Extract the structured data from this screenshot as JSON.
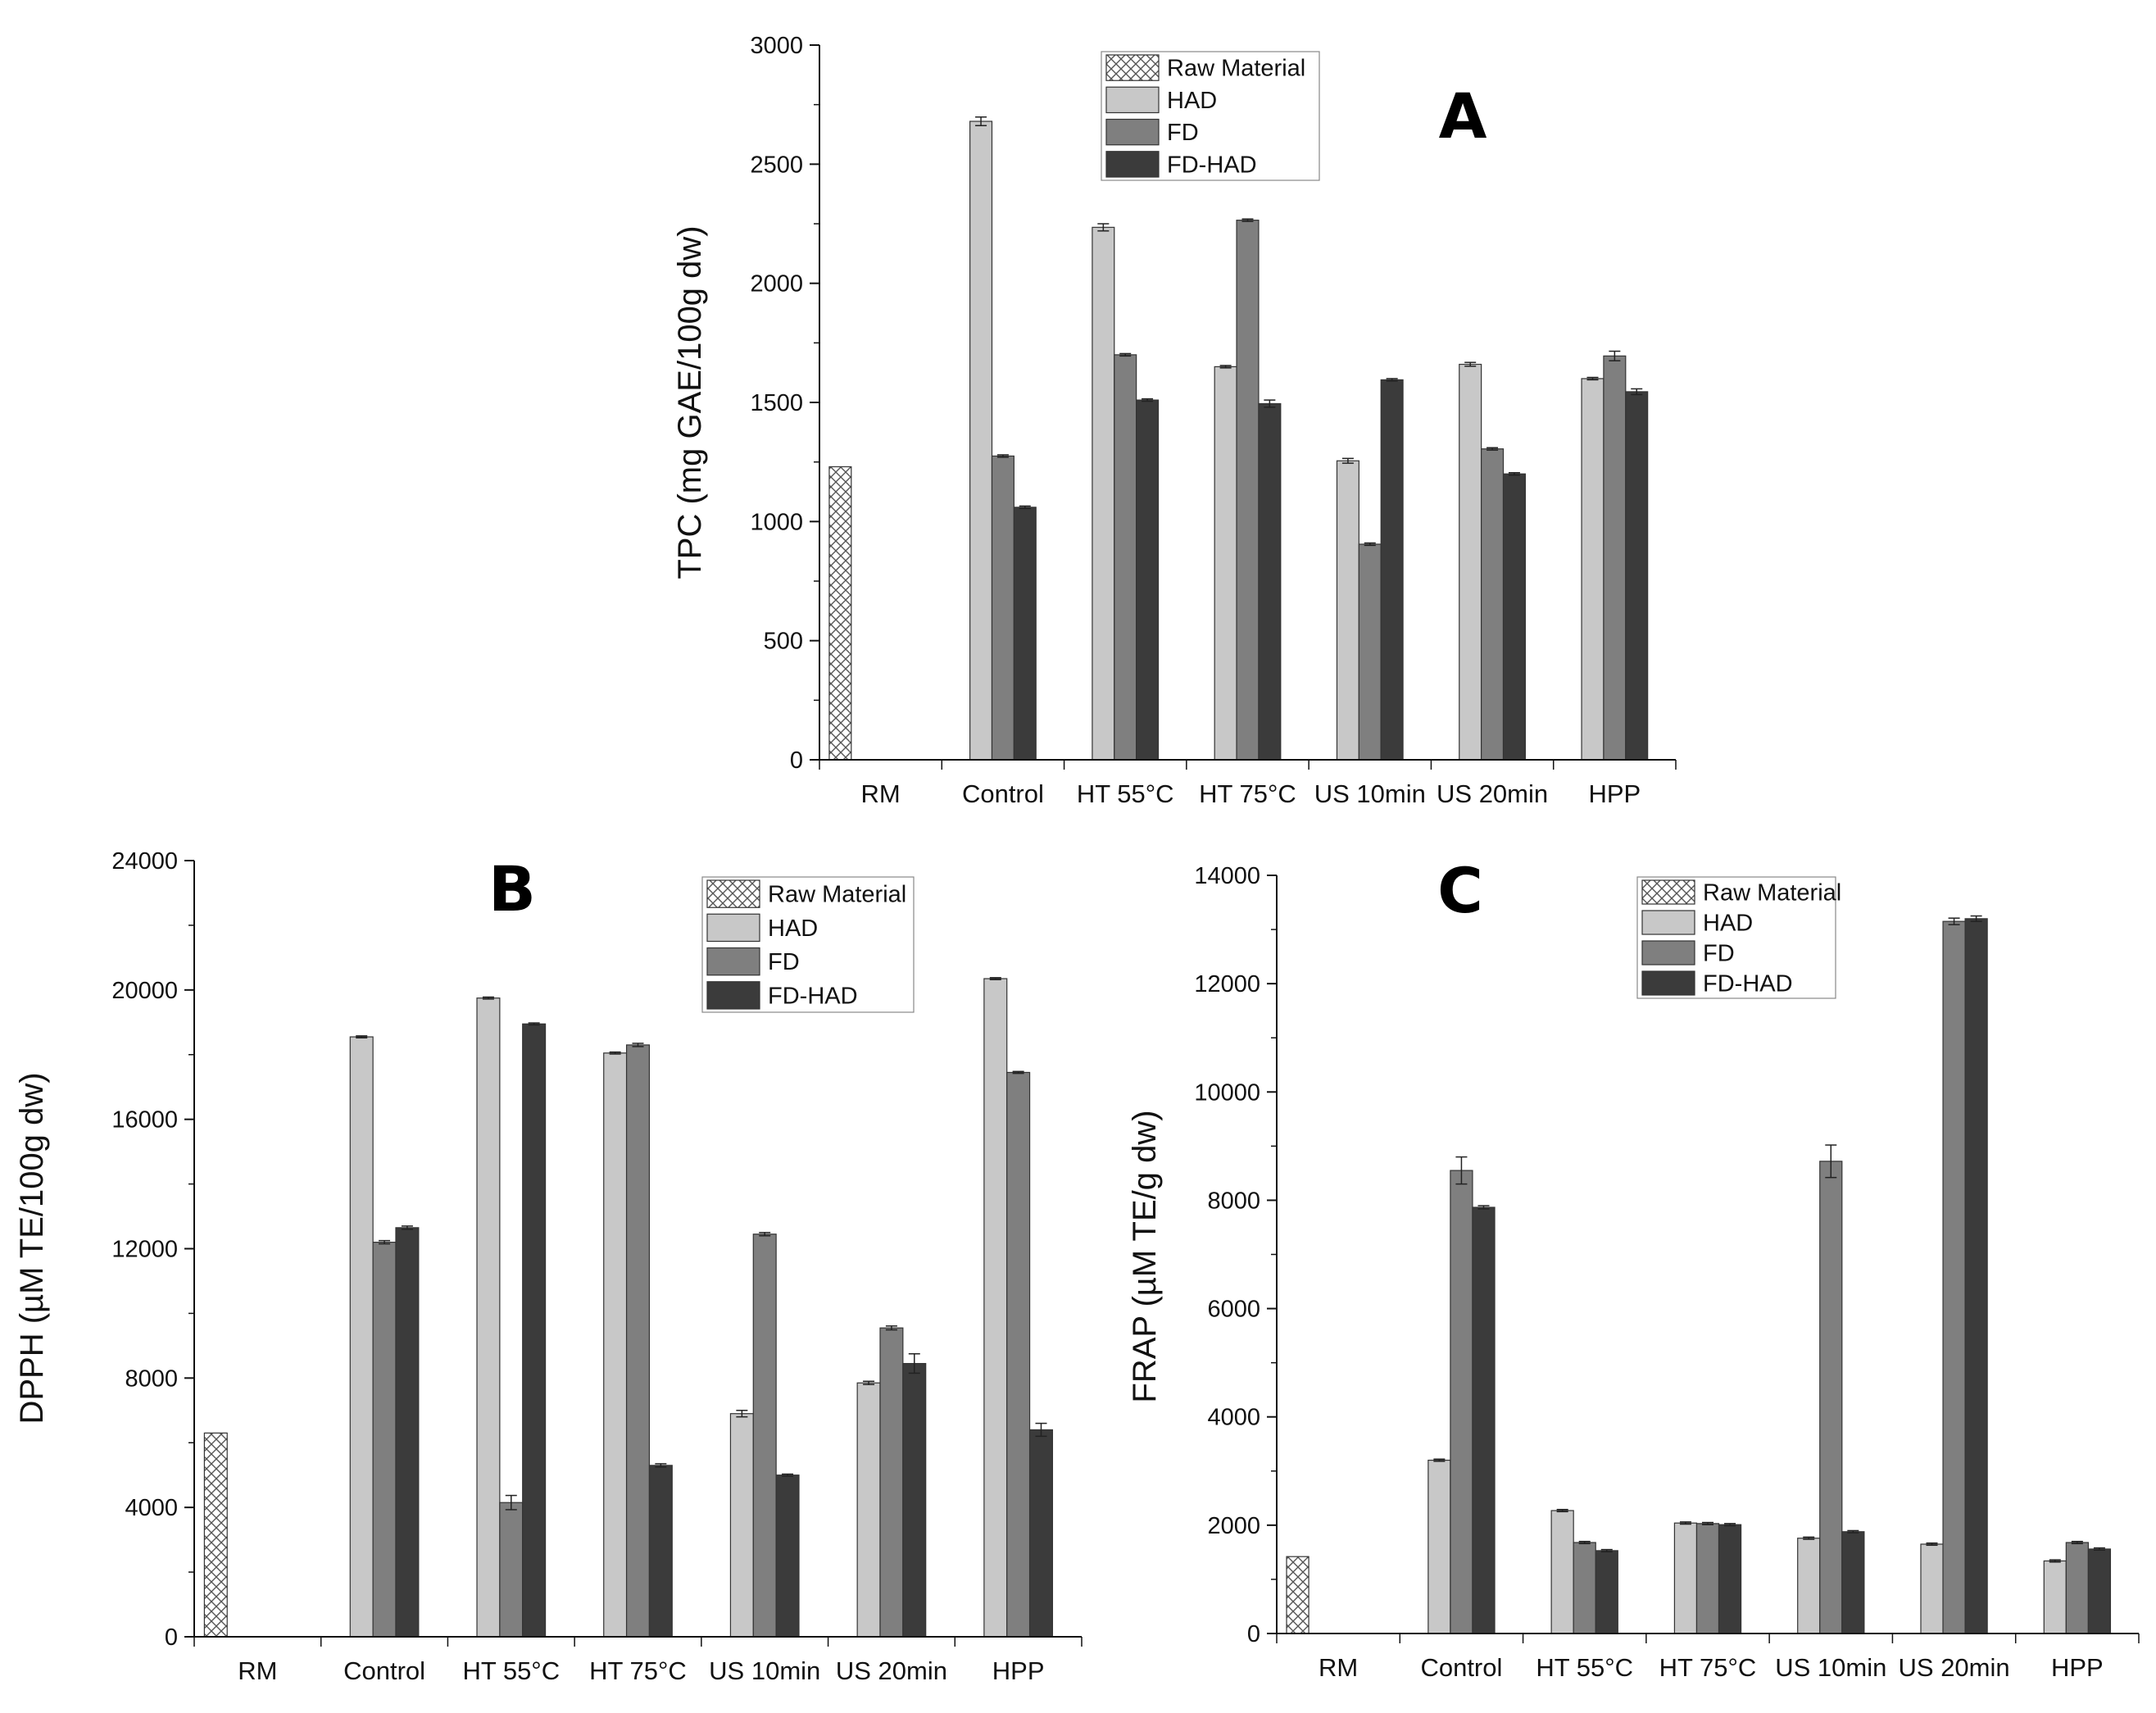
{
  "chart_data": [
    {
      "panel": "A",
      "type": "bar",
      "ylabel": "TPC (mg GAE/100g dw)",
      "ylim": [
        0,
        3000
      ],
      "yticks": [
        0,
        500,
        1000,
        1500,
        2000,
        2500,
        3000
      ],
      "legend_placement": "top-right",
      "categories": [
        "RM",
        "Control",
        "HT 55°C",
        "HT 75°C",
        "US 10min",
        "US 20min",
        "HPP"
      ],
      "series": [
        {
          "name": "Raw Material",
          "values": [
            1230,
            null,
            null,
            null,
            null,
            null,
            null
          ],
          "errors": [
            0,
            0,
            0,
            0,
            0,
            0,
            0
          ]
        },
        {
          "name": "HAD",
          "values": [
            null,
            2680,
            2235,
            1650,
            1255,
            1660,
            1600
          ],
          "errors": [
            0,
            18,
            15,
            5,
            10,
            8,
            5
          ]
        },
        {
          "name": "FD",
          "values": [
            null,
            1275,
            1700,
            2265,
            905,
            1305,
            1695
          ],
          "errors": [
            0,
            5,
            5,
            5,
            5,
            5,
            20
          ]
        },
        {
          "name": "FD-HAD",
          "values": [
            null,
            1060,
            1510,
            1495,
            1595,
            1200,
            1545
          ],
          "errors": [
            0,
            5,
            5,
            15,
            5,
            5,
            12
          ]
        }
      ]
    },
    {
      "panel": "B",
      "type": "bar",
      "ylabel": "DPPH (µM TE/100g dw)",
      "ylim": [
        0,
        24000
      ],
      "yticks": [
        0,
        4000,
        8000,
        12000,
        16000,
        20000,
        24000
      ],
      "legend_placement": "top-right",
      "categories": [
        "RM",
        "Control",
        "HT 55°C",
        "HT 75°C",
        "US 10min",
        "US 20min",
        "HPP"
      ],
      "series": [
        {
          "name": "Raw Material",
          "values": [
            6300,
            null,
            null,
            null,
            null,
            null,
            null
          ],
          "errors": [
            0,
            0,
            0,
            0,
            0,
            0,
            0
          ]
        },
        {
          "name": "HAD",
          "values": [
            null,
            18550,
            19750,
            18050,
            6900,
            7850,
            20350
          ],
          "errors": [
            0,
            30,
            30,
            30,
            100,
            50,
            30
          ]
        },
        {
          "name": "FD",
          "values": [
            null,
            12200,
            4150,
            18300,
            12450,
            9550,
            17450
          ],
          "errors": [
            0,
            50,
            220,
            50,
            50,
            60,
            30
          ]
        },
        {
          "name": "FD-HAD",
          "values": [
            null,
            12650,
            18950,
            5300,
            5000,
            8450,
            6400
          ],
          "errors": [
            0,
            50,
            30,
            50,
            30,
            300,
            200
          ]
        }
      ]
    },
    {
      "panel": "C",
      "type": "bar",
      "ylabel": "FRAP (µM TE/g dw)",
      "ylim": [
        0,
        14000
      ],
      "yticks": [
        0,
        2000,
        4000,
        6000,
        8000,
        10000,
        12000,
        14000
      ],
      "legend_placement": "top-right",
      "categories": [
        "RM",
        "Control",
        "HT 55°C",
        "HT 75°C",
        "US 10min",
        "US 20min",
        "HPP"
      ],
      "series": [
        {
          "name": "Raw Material",
          "values": [
            1420,
            null,
            null,
            null,
            null,
            null,
            null
          ],
          "errors": [
            0,
            0,
            0,
            0,
            0,
            0,
            0
          ]
        },
        {
          "name": "HAD",
          "values": [
            null,
            3200,
            2270,
            2040,
            1760,
            1650,
            1340
          ],
          "errors": [
            0,
            20,
            20,
            20,
            20,
            20,
            20
          ]
        },
        {
          "name": "FD",
          "values": [
            null,
            8550,
            1680,
            2030,
            8720,
            13150,
            1680
          ],
          "errors": [
            0,
            250,
            20,
            20,
            300,
            60,
            20
          ]
        },
        {
          "name": "FD-HAD",
          "values": [
            null,
            7870,
            1530,
            2010,
            1880,
            13200,
            1560
          ],
          "errors": [
            0,
            30,
            20,
            20,
            20,
            50,
            20
          ]
        }
      ]
    }
  ],
  "colors": {
    "Raw Material": "#ffffff",
    "HAD": "#c8c8c8",
    "FD": "#7f7f7f",
    "FD-HAD": "#3b3b3b"
  },
  "patterns": {
    "Raw Material": "crosshatch"
  }
}
